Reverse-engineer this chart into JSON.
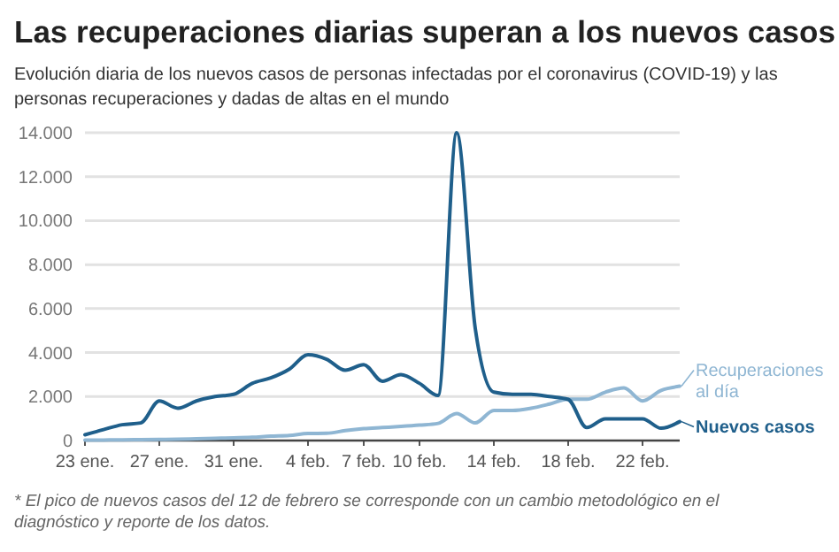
{
  "chart_data": {
    "type": "line",
    "title": "Las recuperaciones diarias superan a los nuevos casos",
    "subtitle": "Evolución diaria de los nuevos casos de personas infectadas por el coronavirus (COVID-19) y las personas recuperaciones y dadas de altas en el mundo",
    "x": [
      "--01-23",
      "--01-24",
      "--01-25",
      "--01-26",
      "--01-27",
      "--01-28",
      "--01-29",
      "--01-30",
      "--01-31",
      "--02-01",
      "--02-02",
      "--02-03",
      "--02-04",
      "--02-05",
      "--02-06",
      "--02-07",
      "--02-08",
      "--02-09",
      "--02-10",
      "--02-11",
      "--02-12",
      "--02-13",
      "--02-14",
      "--02-15",
      "--02-16",
      "--02-17",
      "--02-18",
      "--02-19",
      "--02-20",
      "--02-21",
      "--02-22",
      "--02-23",
      "--02-24"
    ],
    "series": [
      {
        "name": "Recuperaciones al día",
        "color": "#8fb6d3",
        "values": [
          20,
          25,
          30,
          40,
          50,
          60,
          80,
          100,
          120,
          150,
          200,
          230,
          320,
          330,
          450,
          540,
          590,
          640,
          700,
          780,
          1230,
          800,
          1370,
          1370,
          1470,
          1660,
          1880,
          1880,
          2200,
          2390,
          1800,
          2280,
          2470
        ]
      },
      {
        "name": "Nuevos casos",
        "color": "#1f5f8b",
        "values": [
          260,
          500,
          720,
          800,
          1800,
          1470,
          1800,
          2000,
          2100,
          2600,
          2850,
          3250,
          3900,
          3700,
          3200,
          3450,
          2700,
          3000,
          2600,
          2050,
          14000,
          5100,
          2200,
          2100,
          2100,
          2000,
          1870,
          590,
          990,
          990,
          990,
          560,
          860
        ]
      }
    ],
    "xlim": [
      "--01-23",
      "--02-24"
    ],
    "xticks": [
      {
        "value": "--01-23",
        "label": "23 ene."
      },
      {
        "value": "--01-27",
        "label": "27 ene."
      },
      {
        "value": "--01-31",
        "label": "31 ene."
      },
      {
        "value": "--02-04",
        "label": "4 feb."
      },
      {
        "value": "--02-07",
        "label": "7 feb."
      },
      {
        "value": "--02-10",
        "label": "10 feb."
      },
      {
        "value": "--02-14",
        "label": "14 feb."
      },
      {
        "value": "--02-18",
        "label": "18 feb."
      },
      {
        "value": "--02-22",
        "label": "22 feb."
      }
    ],
    "ylim": [
      0,
      14000
    ],
    "yticks": [
      0,
      {
        "value": 2000,
        "label": "2.000"
      },
      {
        "value": 4000,
        "label": "4.000"
      },
      {
        "value": 6000,
        "label": "6.000"
      },
      {
        "value": 8000,
        "label": "8.000"
      },
      {
        "value": 10000,
        "label": "10.000"
      },
      {
        "value": 12000,
        "label": "12.000"
      },
      {
        "value": 14000,
        "label": "14.000"
      }
    ],
    "grid": "y",
    "legend": "right",
    "line_style": "solid",
    "marker": "none",
    "annotations": [
      "* El pico de nuevos casos del 12 de febrero se corresponde con un cambio metodológico en el diagnóstico y reporte de los datos."
    ]
  }
}
